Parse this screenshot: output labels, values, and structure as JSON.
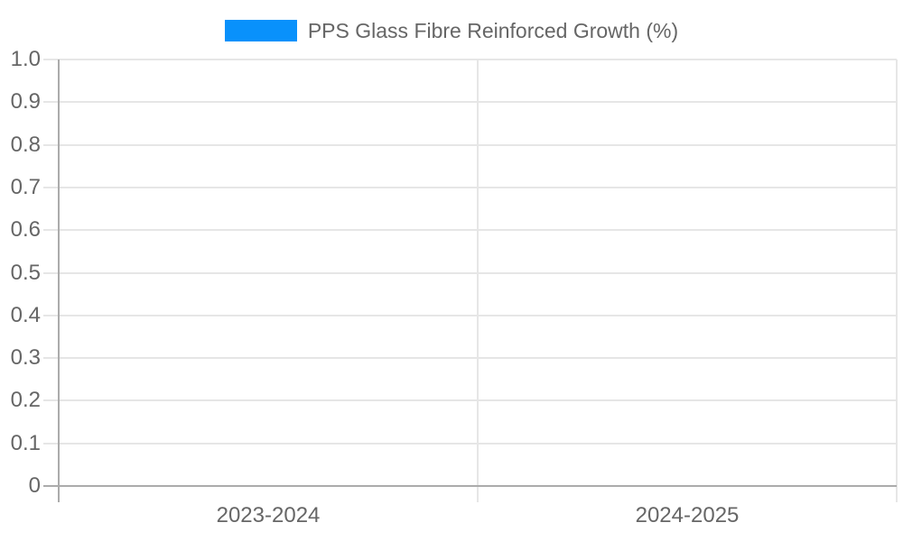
{
  "legend": {
    "items": [
      {
        "label": "PPS Glass Fibre Reinforced Growth (%)",
        "swatch_color": "#0991FB"
      }
    ]
  },
  "chart_data": {
    "type": "bar",
    "title": "",
    "categories": [
      "2023-2024",
      "2024-2025"
    ],
    "series": [
      {
        "name": "PPS Glass Fibre Reinforced Growth (%)",
        "color": "#0991FB",
        "values": [
          0,
          0
        ]
      }
    ],
    "xlabel": "",
    "ylabel": "",
    "ylim": [
      0,
      1
    ],
    "ytick_step": 0.1,
    "ytick_labels": [
      "0",
      "0.1",
      "0.2",
      "0.3",
      "0.4",
      "0.5",
      "0.6",
      "0.7",
      "0.8",
      "0.9",
      "1.0"
    ],
    "grid": true,
    "legend_position": "top",
    "colors": {
      "grid_line": "#e6e6e6",
      "axis_line": "#ababab",
      "tick_label": "#666666",
      "legend_label": "#666666"
    }
  }
}
